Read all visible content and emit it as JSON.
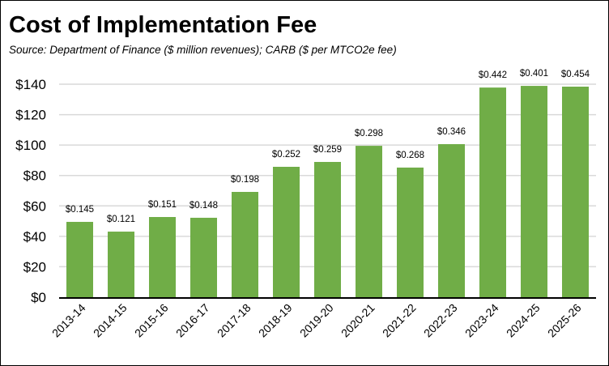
{
  "chart_data": {
    "type": "bar",
    "title": "Cost of Implementation Fee",
    "subtitle": "Source:  Department of Finance ($ million revenues); CARB ($ per MTCO2e fee)",
    "xlabel": "",
    "ylabel": "",
    "ylim": [
      0,
      140
    ],
    "yticks": [
      0,
      20,
      40,
      60,
      80,
      100,
      120,
      140
    ],
    "ytick_labels": [
      "$0",
      "$20",
      "$40",
      "$60",
      "$80",
      "$100",
      "$120",
      "$140"
    ],
    "grid": true,
    "categories": [
      "2013-14",
      "2014-15",
      "2015-16",
      "2016-17",
      "2017-18",
      "2018-19",
      "2019-20",
      "2020-21",
      "2021-22",
      "2022-23",
      "2023-24",
      "2024-25",
      "2025-26"
    ],
    "values": [
      49.5,
      43.1,
      52.7,
      52.2,
      69.2,
      85.7,
      88.9,
      99.5,
      85.2,
      100.6,
      137.8,
      138.9,
      138.4
    ],
    "data_labels": [
      "$0.145",
      "$0.121",
      "$0.151",
      "$0.148",
      "$0.198",
      "$0.252",
      "$0.259",
      "$0.298",
      "$0.268",
      "$0.346",
      "$0.442",
      "$0.401",
      "$0.454"
    ],
    "bar_color": "#70AD47",
    "grid_color": "#D9D9D9"
  }
}
